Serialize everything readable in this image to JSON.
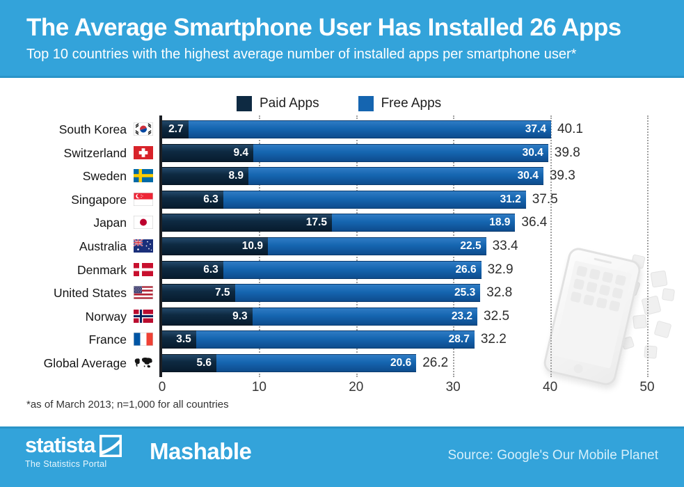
{
  "header": {
    "title": "The Average Smartphone User Has Installed 26 Apps",
    "subtitle": "Top 10 countries with the highest average number of installed apps per smartphone user*"
  },
  "legend": [
    {
      "label": "Paid Apps",
      "color": "#0e2a42"
    },
    {
      "label": "Free Apps",
      "color": "#1565b0"
    }
  ],
  "chart_data": {
    "type": "bar",
    "orientation": "horizontal",
    "stacked": true,
    "title": "The Average Smartphone User Has Installed 26 Apps",
    "categories": [
      "South Korea",
      "Switzerland",
      "Sweden",
      "Singapore",
      "Japan",
      "Australia",
      "Denmark",
      "United States",
      "Norway",
      "France",
      "Global Average"
    ],
    "flags": [
      "south-korea",
      "switzerland",
      "sweden",
      "singapore",
      "japan",
      "australia",
      "denmark",
      "united-states",
      "norway",
      "france",
      "global-average"
    ],
    "series": [
      {
        "name": "Paid Apps",
        "values": [
          2.7,
          9.4,
          8.9,
          6.3,
          17.5,
          10.9,
          6.3,
          7.5,
          9.3,
          3.5,
          5.6
        ]
      },
      {
        "name": "Free Apps",
        "values": [
          37.4,
          30.4,
          30.4,
          31.2,
          18.9,
          22.5,
          26.6,
          25.3,
          23.2,
          28.7,
          20.6
        ]
      }
    ],
    "totals": [
      40.1,
      39.8,
      39.3,
      37.5,
      36.4,
      33.4,
      32.9,
      32.8,
      32.5,
      32.2,
      26.2
    ],
    "x_ticks": [
      0,
      10,
      20,
      30,
      40,
      50
    ],
    "xlim": [
      0,
      50
    ],
    "grid": "dotted-vertical",
    "legend_position": "top-center"
  },
  "footnote": "*as of March 2013; n=1,000 for all countries",
  "footer": {
    "statista_wordmark": "statista",
    "statista_tagline": "The Statistics Portal",
    "partner_wordmark": "Mashable",
    "source": "Source: Google's Our Mobile Planet"
  },
  "colors": {
    "brand_blue": "#33a3da",
    "paid_bar": "#0e2a42",
    "free_bar": "#1565b0",
    "total_text": "#2d2d2d"
  }
}
